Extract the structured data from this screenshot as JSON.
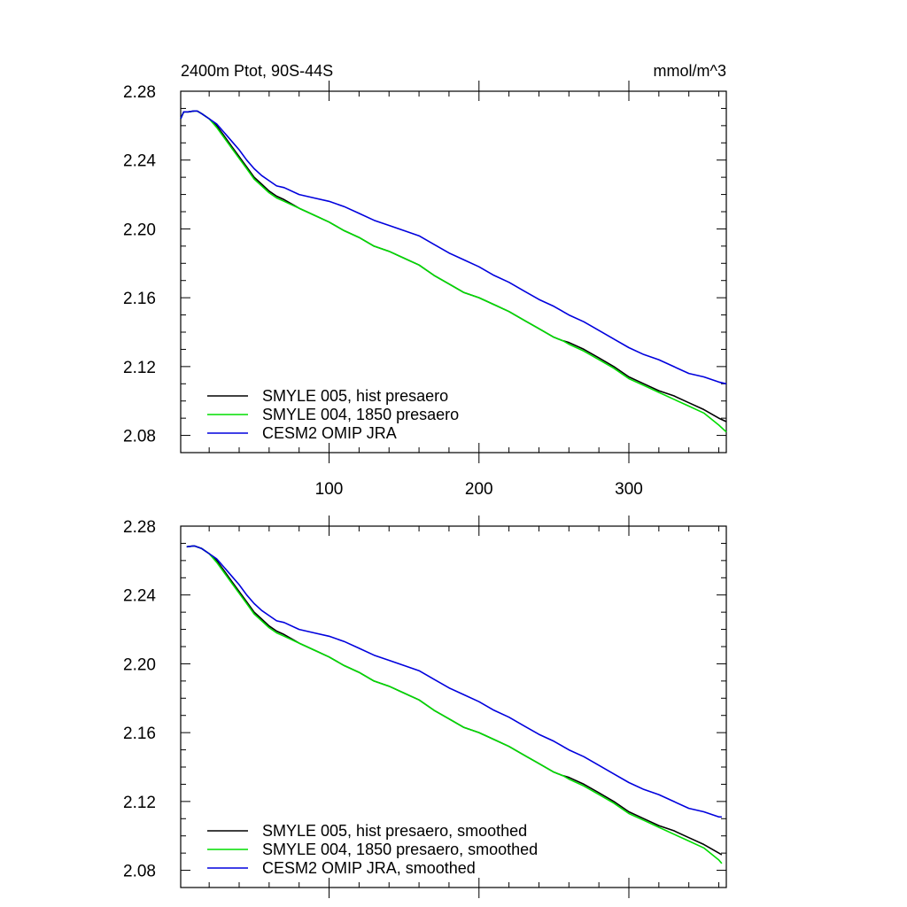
{
  "chart_data": [
    {
      "type": "line",
      "title_left": "2400m Ptot, 90S-44S",
      "title_right": "mmol/m^3",
      "xlabel": "",
      "ylabel": "",
      "xlim": [
        1,
        365
      ],
      "ylim": [
        2.07,
        2.28
      ],
      "x_ticks": [
        100,
        200,
        300
      ],
      "x_tick_labels": [
        "100",
        "200",
        "300"
      ],
      "y_ticks": [
        2.08,
        2.12,
        2.16,
        2.2,
        2.24,
        2.28
      ],
      "y_tick_labels": [
        "2.08",
        "2.12",
        "2.16",
        "2.20",
        "2.24",
        "2.28"
      ],
      "legend_position": "bottom-left",
      "series": [
        {
          "name": "SMYLE 005, hist presaero",
          "color": "#000000",
          "x": [
            1,
            3,
            6,
            10,
            12,
            15,
            20,
            25,
            30,
            35,
            40,
            45,
            50,
            55,
            60,
            65,
            70,
            80,
            90,
            100,
            110,
            120,
            130,
            140,
            150,
            160,
            170,
            180,
            190,
            200,
            210,
            220,
            230,
            240,
            250,
            256,
            260,
            270,
            280,
            290,
            300,
            310,
            320,
            330,
            340,
            350,
            360,
            365
          ],
          "values": [
            2.264,
            2.268,
            2.268,
            2.2685,
            2.2685,
            2.267,
            2.264,
            2.26,
            2.254,
            2.248,
            2.242,
            2.236,
            2.23,
            2.226,
            2.222,
            2.219,
            2.217,
            2.212,
            2.208,
            2.204,
            2.199,
            2.195,
            2.19,
            2.187,
            2.183,
            2.179,
            2.173,
            2.168,
            2.163,
            2.16,
            2.156,
            2.152,
            2.147,
            2.142,
            2.137,
            2.135,
            2.134,
            2.13,
            2.125,
            2.12,
            2.114,
            2.11,
            2.106,
            2.103,
            2.099,
            2.095,
            2.09,
            2.088
          ]
        },
        {
          "name": "SMYLE 004, 1850 presaero",
          "color": "#00dd00",
          "x": [
            1,
            3,
            6,
            10,
            12,
            15,
            20,
            25,
            30,
            35,
            40,
            45,
            50,
            55,
            60,
            65,
            70,
            80,
            90,
            100,
            110,
            120,
            130,
            140,
            150,
            160,
            170,
            180,
            190,
            200,
            210,
            220,
            230,
            240,
            250,
            256,
            260,
            270,
            280,
            290,
            300,
            310,
            320,
            330,
            340,
            350,
            360,
            365
          ],
          "values": [
            2.264,
            2.268,
            2.268,
            2.2685,
            2.2685,
            2.267,
            2.264,
            2.259,
            2.253,
            2.247,
            2.241,
            2.235,
            2.229,
            2.225,
            2.221,
            2.218,
            2.216,
            2.212,
            2.208,
            2.204,
            2.199,
            2.195,
            2.19,
            2.187,
            2.183,
            2.179,
            2.173,
            2.168,
            2.163,
            2.16,
            2.156,
            2.152,
            2.147,
            2.142,
            2.137,
            2.135,
            2.133,
            2.129,
            2.124,
            2.119,
            2.113,
            2.109,
            2.105,
            2.101,
            2.097,
            2.093,
            2.086,
            2.082
          ]
        },
        {
          "name": "CESM2 OMIP JRA",
          "color": "#0000dd",
          "x": [
            1,
            3,
            6,
            10,
            12,
            15,
            20,
            25,
            30,
            35,
            40,
            45,
            50,
            55,
            60,
            65,
            70,
            80,
            90,
            100,
            110,
            120,
            130,
            140,
            150,
            160,
            170,
            180,
            190,
            200,
            210,
            220,
            230,
            240,
            250,
            260,
            270,
            280,
            290,
            300,
            310,
            320,
            330,
            340,
            350,
            360,
            365
          ],
          "values": [
            2.264,
            2.268,
            2.268,
            2.2685,
            2.2685,
            2.267,
            2.264,
            2.261,
            2.256,
            2.251,
            2.246,
            2.24,
            2.235,
            2.231,
            2.228,
            2.225,
            2.224,
            2.22,
            2.218,
            2.216,
            2.213,
            2.209,
            2.205,
            2.202,
            2.199,
            2.196,
            2.191,
            2.186,
            2.182,
            2.178,
            2.173,
            2.169,
            2.164,
            2.159,
            2.155,
            2.15,
            2.146,
            2.141,
            2.136,
            2.131,
            2.127,
            2.124,
            2.12,
            2.116,
            2.114,
            2.111,
            2.11
          ]
        }
      ]
    },
    {
      "type": "line",
      "title_left": "",
      "title_right": "",
      "xlabel": "",
      "ylabel": "",
      "xlim": [
        1,
        365
      ],
      "ylim": [
        2.07,
        2.28
      ],
      "x_ticks": [
        100,
        200,
        300
      ],
      "x_tick_labels": [],
      "y_ticks": [
        2.08,
        2.12,
        2.16,
        2.2,
        2.24,
        2.28
      ],
      "y_tick_labels": [
        "2.08",
        "2.12",
        "2.16",
        "2.20",
        "2.24",
        "2.28"
      ],
      "legend_position": "bottom-left",
      "series": [
        {
          "name": "SMYLE 005, hist presaero, smoothed",
          "color": "#000000",
          "x": [
            5,
            10,
            15,
            20,
            25,
            30,
            35,
            40,
            45,
            50,
            55,
            60,
            65,
            70,
            80,
            90,
            100,
            110,
            120,
            130,
            140,
            150,
            160,
            170,
            180,
            190,
            200,
            210,
            220,
            230,
            240,
            250,
            256,
            260,
            270,
            280,
            290,
            300,
            310,
            320,
            330,
            340,
            350,
            360,
            362
          ],
          "values": [
            2.268,
            2.2685,
            2.267,
            2.264,
            2.26,
            2.254,
            2.248,
            2.242,
            2.236,
            2.23,
            2.226,
            2.222,
            2.219,
            2.217,
            2.212,
            2.208,
            2.204,
            2.199,
            2.195,
            2.19,
            2.187,
            2.183,
            2.179,
            2.173,
            2.168,
            2.163,
            2.16,
            2.156,
            2.152,
            2.147,
            2.142,
            2.137,
            2.135,
            2.134,
            2.13,
            2.125,
            2.12,
            2.114,
            2.11,
            2.106,
            2.103,
            2.099,
            2.095,
            2.09,
            2.089
          ]
        },
        {
          "name": "SMYLE 004, 1850 presaero, smoothed",
          "color": "#00dd00",
          "x": [
            5,
            10,
            15,
            20,
            25,
            30,
            35,
            40,
            45,
            50,
            55,
            60,
            65,
            70,
            80,
            90,
            100,
            110,
            120,
            130,
            140,
            150,
            160,
            170,
            180,
            190,
            200,
            210,
            220,
            230,
            240,
            250,
            256,
            260,
            270,
            280,
            290,
            300,
            310,
            320,
            330,
            340,
            350,
            360,
            362
          ],
          "values": [
            2.268,
            2.2685,
            2.267,
            2.264,
            2.259,
            2.253,
            2.247,
            2.241,
            2.235,
            2.229,
            2.225,
            2.221,
            2.218,
            2.216,
            2.212,
            2.208,
            2.204,
            2.199,
            2.195,
            2.19,
            2.187,
            2.183,
            2.179,
            2.173,
            2.168,
            2.163,
            2.16,
            2.156,
            2.152,
            2.147,
            2.142,
            2.137,
            2.135,
            2.133,
            2.129,
            2.124,
            2.119,
            2.113,
            2.109,
            2.105,
            2.101,
            2.097,
            2.093,
            2.086,
            2.084
          ]
        },
        {
          "name": "CESM2 OMIP JRA, smoothed",
          "color": "#0000dd",
          "x": [
            5,
            10,
            15,
            20,
            25,
            30,
            35,
            40,
            45,
            50,
            55,
            60,
            65,
            70,
            80,
            90,
            100,
            110,
            120,
            130,
            140,
            150,
            160,
            170,
            180,
            190,
            200,
            210,
            220,
            230,
            240,
            250,
            260,
            270,
            280,
            290,
            300,
            310,
            320,
            330,
            340,
            350,
            360,
            362
          ],
          "values": [
            2.268,
            2.2685,
            2.267,
            2.264,
            2.261,
            2.256,
            2.251,
            2.246,
            2.24,
            2.235,
            2.231,
            2.228,
            2.225,
            2.224,
            2.22,
            2.218,
            2.216,
            2.213,
            2.209,
            2.205,
            2.202,
            2.199,
            2.196,
            2.191,
            2.186,
            2.182,
            2.178,
            2.173,
            2.169,
            2.164,
            2.159,
            2.155,
            2.15,
            2.146,
            2.141,
            2.136,
            2.131,
            2.127,
            2.124,
            2.12,
            2.116,
            2.114,
            2.111,
            2.111
          ]
        }
      ]
    }
  ]
}
